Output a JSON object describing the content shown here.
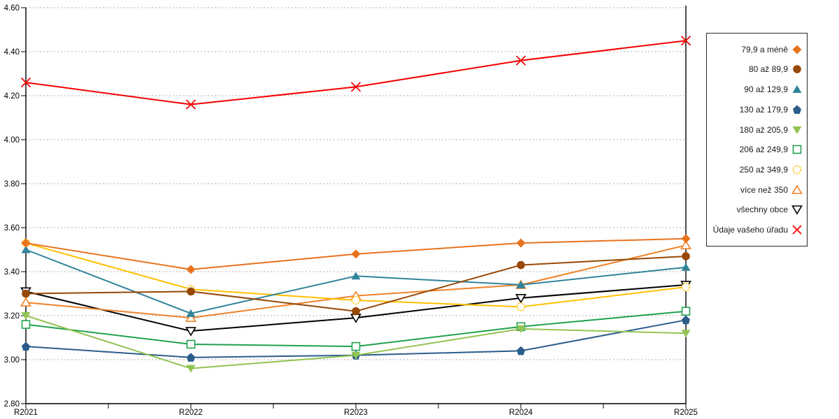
{
  "chart_data": {
    "type": "line",
    "title": "",
    "xlabel": "",
    "ylabel": "",
    "grid": "horizontal-dashed",
    "legend_position": "right",
    "categories": [
      "R2021",
      "R2022",
      "R2023",
      "R2024",
      "R2025"
    ],
    "y_axis": {
      "min": 2.8,
      "max": 4.6,
      "step": 0.2,
      "decimals": 2
    },
    "series": [
      {
        "name": "79,9 a méně",
        "color": "#E8731E",
        "marker": "diamond",
        "fill": "solid",
        "values": [
          3.53,
          3.41,
          3.48,
          3.53,
          3.55
        ]
      },
      {
        "name": "80 až 89,9",
        "color": "#974807",
        "marker": "circle",
        "fill": "solid",
        "values": [
          3.3,
          3.31,
          3.22,
          3.43,
          3.47
        ]
      },
      {
        "name": "90 až 129,9",
        "color": "#31849B",
        "marker": "triangle-up",
        "fill": "solid",
        "values": [
          3.5,
          3.21,
          3.38,
          3.34,
          3.42
        ]
      },
      {
        "name": "130 až 179,9",
        "color": "#2B5C8A",
        "marker": "pentagon",
        "fill": "solid",
        "values": [
          3.06,
          3.01,
          3.02,
          3.04,
          3.18
        ]
      },
      {
        "name": "180 až 205,9",
        "color": "#92C353",
        "marker": "triangle-down",
        "fill": "solid",
        "values": [
          3.2,
          2.96,
          3.02,
          3.14,
          3.12
        ]
      },
      {
        "name": "206 až 249,9",
        "color": "#21A14F",
        "marker": "square",
        "fill": "outline",
        "values": [
          3.16,
          3.07,
          3.06,
          3.15,
          3.22
        ]
      },
      {
        "name": "250 až 349,9",
        "color": "#FFC000",
        "marker": "circle-dotted",
        "fill": "outline",
        "values": [
          3.53,
          3.32,
          3.27,
          3.24,
          3.33
        ]
      },
      {
        "name": "více než 350",
        "color": "#F08228",
        "marker": "triangle-up",
        "fill": "outline",
        "values": [
          3.26,
          3.19,
          3.29,
          3.34,
          3.52
        ]
      },
      {
        "name": "všechny obce",
        "color": "#000000",
        "marker": "triangle-down",
        "fill": "outline",
        "values": [
          3.31,
          3.13,
          3.19,
          3.28,
          3.34
        ]
      },
      {
        "name": "Údaje vašeho úřadu",
        "color": "#F40000",
        "marker": "x",
        "fill": "outline",
        "values": [
          4.26,
          4.16,
          4.24,
          4.36,
          4.45
        ]
      }
    ]
  },
  "colors": {
    "axis": "#000000",
    "grid": "#ACACAC",
    "text": "#000000",
    "legend_border": "#262626",
    "background": "#FFFFFF"
  }
}
